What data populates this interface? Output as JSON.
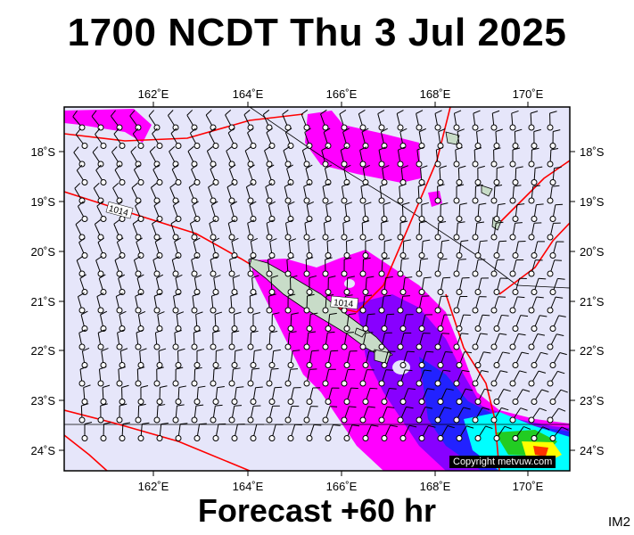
{
  "header": {
    "title": "1700 NCDT Thu 3 Jul 2025"
  },
  "footer": {
    "forecast": "Forecast +60 hr",
    "map_id": "IM2"
  },
  "copyright": "Copyright metvuw.com",
  "map": {
    "lon_labels": [
      "162˚E",
      "164˚E",
      "166˚E",
      "168˚E",
      "170˚E"
    ],
    "lat_labels": [
      "18˚S",
      "19˚S",
      "20˚S",
      "21˚S",
      "22˚S",
      "23˚S",
      "24˚S"
    ],
    "isobar_labels": [
      "1014",
      "1014"
    ],
    "colors": {
      "background": "#e6e6fa",
      "precip_light": "#ff00ff",
      "precip_medium": "#8800ff",
      "precip_heavy": "#2222ff",
      "precip_extreme": "#00ffff",
      "isobar": "#ff0000",
      "land": "#c8dcc8"
    }
  }
}
